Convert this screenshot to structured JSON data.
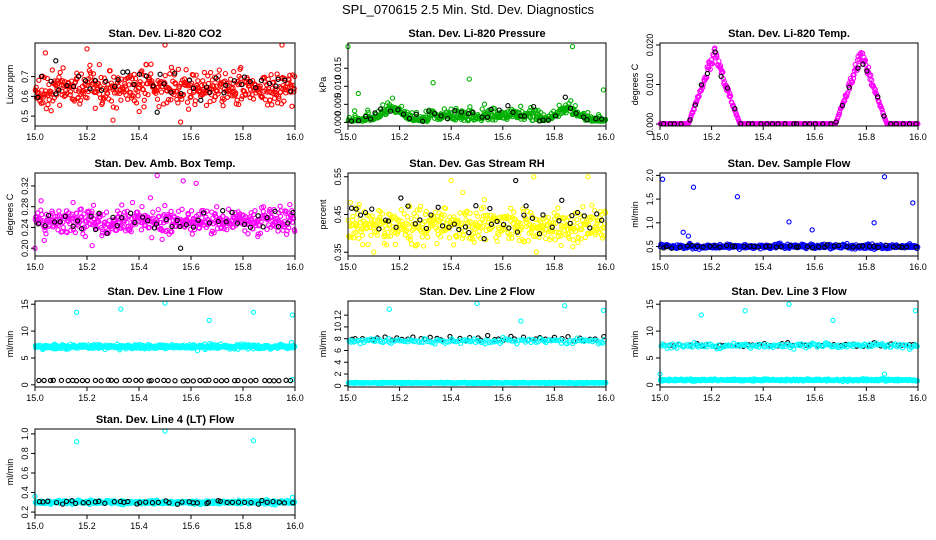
{
  "figure_title": "SPL_070615  2.5 Min. Std. Dev. Diagnostics",
  "chart_data": [
    {
      "type": "scatter",
      "title": "Stan. Dev. Li-820 CO2",
      "ylabel": "Licor ppm",
      "xlim": [
        15.0,
        16.0
      ],
      "ylim": [
        0.45,
        0.87
      ],
      "xticks": [
        "15.0",
        "15.2",
        "15.4",
        "15.6",
        "15.8",
        "16.0"
      ],
      "yticks": [
        "0.5",
        "0.6",
        "0.7"
      ],
      "ytick_values": [
        0.5,
        0.6,
        0.7
      ],
      "series": [
        {
          "name": "primary",
          "color": "#ff0000",
          "pattern": "noise",
          "center": 0.64,
          "spread": 0.06,
          "n": 500,
          "outliers": [
            [
              15.04,
              0.82
            ],
            [
              15.5,
              0.86
            ],
            [
              15.95,
              0.86
            ],
            [
              15.3,
              0.48
            ],
            [
              15.56,
              0.47
            ],
            [
              15.2,
              0.84
            ]
          ]
        },
        {
          "name": "secondary",
          "color": "#000000",
          "pattern": "noise",
          "center": 0.66,
          "spread": 0.05,
          "n": 45,
          "outliers": [
            [
              15.08,
              0.78
            ],
            [
              15.47,
              0.52
            ]
          ]
        }
      ]
    },
    {
      "type": "scatter",
      "title": "Stan. Dev. Li-820 Pressure",
      "ylabel": "kPa",
      "xlim": [
        15.0,
        16.0
      ],
      "ylim": [
        -0.001,
        0.022
      ],
      "xticks": [
        "15.0",
        "15.2",
        "15.4",
        "15.6",
        "15.8",
        "16.0"
      ],
      "yticks": [
        "0.000",
        "0.005",
        "0.010",
        "0.015"
      ],
      "ytick_values": [
        0,
        0.005,
        0.01,
        0.015
      ],
      "series": [
        {
          "name": "primary",
          "color": "#00b000",
          "pattern": "pressure",
          "n": 450,
          "outliers": [
            [
              15.0,
              0.021
            ],
            [
              15.87,
              0.021
            ],
            [
              15.47,
              0.012
            ],
            [
              15.33,
              0.011
            ],
            [
              15.99,
              0.009
            ],
            [
              15.04,
              0.008
            ]
          ]
        },
        {
          "name": "secondary",
          "color": "#000000",
          "pattern": "pressure",
          "n": 40,
          "outliers": []
        }
      ]
    },
    {
      "type": "scatter",
      "title": "Stan. Dev. Li-820 Temp.",
      "ylabel": "degrees C",
      "xlim": [
        15.0,
        16.0
      ],
      "ylim": [
        -0.0005,
        0.0205
      ],
      "xticks": [
        "15.0",
        "15.2",
        "15.4",
        "15.6",
        "15.8",
        "16.0"
      ],
      "yticks": [
        "0.000",
        "0.010",
        "0.020"
      ],
      "ytick_values": [
        0,
        0.01,
        0.02
      ],
      "series": [
        {
          "name": "primary",
          "color": "#ff00ff",
          "pattern": "peaks",
          "peaks": [
            15.21,
            15.78
          ],
          "peak_height": 0.019,
          "half_width": 0.1,
          "n": 450,
          "outliers": []
        },
        {
          "name": "secondary",
          "color": "#000000",
          "pattern": "peaks",
          "peaks": [
            15.21,
            15.78
          ],
          "peak_height": 0.019,
          "half_width": 0.1,
          "n": 40,
          "outliers": []
        }
      ]
    },
    {
      "type": "scatter",
      "title": "Stan. Dev. Amb. Box Temp.",
      "ylabel": "degrees C",
      "xlim": [
        15.0,
        16.0
      ],
      "ylim": [
        0.185,
        0.345
      ],
      "xticks": [
        "15.0",
        "15.2",
        "15.4",
        "15.6",
        "15.8",
        "16.0"
      ],
      "yticks": [
        "0.20",
        "0.24",
        "0.28",
        "0.32"
      ],
      "ytick_values": [
        0.2,
        0.24,
        0.28,
        0.32
      ],
      "series": [
        {
          "name": "primary",
          "color": "#ff00ff",
          "pattern": "noise",
          "center": 0.252,
          "spread": 0.018,
          "n": 480,
          "outliers": [
            [
              15.47,
              0.34
            ],
            [
              15.57,
              0.33
            ],
            [
              15.62,
              0.325
            ],
            [
              15.0,
              0.2
            ],
            [
              15.22,
              0.205
            ]
          ]
        },
        {
          "name": "secondary",
          "color": "#000000",
          "pattern": "noise",
          "center": 0.252,
          "spread": 0.014,
          "n": 45,
          "outliers": [
            [
              15.56,
              0.2
            ]
          ]
        }
      ]
    },
    {
      "type": "scatter",
      "title": "Stan. Dev. Gas Stream RH",
      "ylabel": "percent",
      "xlim": [
        15.0,
        16.0
      ],
      "ylim": [
        0.34,
        0.56
      ],
      "xticks": [
        "15.0",
        "15.2",
        "15.4",
        "15.6",
        "15.8",
        "16.0"
      ],
      "yticks": [
        "0.35",
        "0.45",
        "0.55"
      ],
      "ytick_values": [
        0.35,
        0.45,
        0.55
      ],
      "series": [
        {
          "name": "primary",
          "color": "#ffff00",
          "pattern": "noise",
          "center": 0.42,
          "spread": 0.03,
          "n": 480,
          "outliers": [
            [
              15.72,
              0.55
            ],
            [
              15.93,
              0.55
            ],
            [
              15.4,
              0.54
            ],
            [
              15.1,
              0.35
            ],
            [
              15.73,
              0.35
            ]
          ]
        },
        {
          "name": "secondary",
          "color": "#000000",
          "pattern": "noise",
          "center": 0.44,
          "spread": 0.03,
          "n": 45,
          "outliers": [
            [
              15.65,
              0.54
            ]
          ]
        }
      ]
    },
    {
      "type": "scatter",
      "title": "Stan. Dev. Sample Flow",
      "ylabel": "ml/min",
      "xlim": [
        15.0,
        16.0
      ],
      "ylim": [
        0.3,
        2.05
      ],
      "xticks": [
        "15.0",
        "15.2",
        "15.4",
        "15.6",
        "15.8",
        "16.0"
      ],
      "yticks": [
        "0.5",
        "1.0",
        "1.5",
        "2.0"
      ],
      "ytick_values": [
        0.5,
        1,
        1.5,
        2
      ],
      "series": [
        {
          "name": "primary",
          "color": "#0000ff",
          "pattern": "noise",
          "center": 0.5,
          "spread": 0.03,
          "n": 450,
          "outliers": [
            [
              15.01,
              1.92
            ],
            [
              15.87,
              1.97
            ],
            [
              15.13,
              1.75
            ],
            [
              15.3,
              1.55
            ],
            [
              15.98,
              1.42
            ],
            [
              15.83,
              1.0
            ],
            [
              15.5,
              1.02
            ],
            [
              15.09,
              0.8
            ],
            [
              15.11,
              0.72
            ],
            [
              15.59,
              0.85
            ]
          ]
        },
        {
          "name": "secondary",
          "color": "#000000",
          "pattern": "noise",
          "center": 0.5,
          "spread": 0.02,
          "n": 45,
          "outliers": []
        }
      ]
    },
    {
      "type": "scatter",
      "title": "Stan. Dev. Line 1 Flow",
      "ylabel": "ml/min",
      "xlim": [
        15.0,
        16.0
      ],
      "ylim": [
        -0.4,
        15.6
      ],
      "xticks": [
        "15.0",
        "15.2",
        "15.4",
        "15.6",
        "15.8",
        "16.0"
      ],
      "yticks": [
        "0",
        "5",
        "10",
        "15"
      ],
      "ytick_values": [
        0,
        5,
        10,
        15
      ],
      "series": [
        {
          "name": "primary",
          "color": "#00ffff",
          "pattern": "noise",
          "center": 7.1,
          "spread": 0.28,
          "n": 450,
          "outliers": [
            [
              15.16,
              13.5
            ],
            [
              15.33,
              14.1
            ],
            [
              15.5,
              15.2
            ],
            [
              15.67,
              12.0
            ],
            [
              15.84,
              13.5
            ],
            [
              15.99,
              13.0
            ],
            [
              15.99,
              1.0
            ]
          ]
        },
        {
          "name": "secondary",
          "color": "#000000",
          "pattern": "noise",
          "center": 0.8,
          "spread": 0.05,
          "n": 45,
          "outliers": []
        }
      ]
    },
    {
      "type": "scatter",
      "title": "Stan. Dev. Line 2 Flow",
      "ylabel": "ml/min",
      "xlim": [
        15.0,
        16.0
      ],
      "ylim": [
        -0.2,
        14.4
      ],
      "xticks": [
        "15.0",
        "15.2",
        "15.4",
        "15.6",
        "15.8",
        "16.0"
      ],
      "yticks": [
        "0",
        "2",
        "4",
        "6",
        "8",
        "10",
        "12"
      ],
      "ytick_values": [
        0,
        2,
        4,
        6,
        8,
        10,
        12
      ],
      "series": [
        {
          "name": "primary",
          "color": "#00ffff",
          "pattern": "noise",
          "center": 0.5,
          "spread": 0.05,
          "n": 450,
          "outliers": [
            [
              15.16,
              13.0
            ],
            [
              15.5,
              14.0
            ],
            [
              15.67,
              11.0
            ],
            [
              15.84,
              13.6
            ],
            [
              15.99,
              12.8
            ]
          ]
        },
        {
          "name": "secondary",
          "color": "#000000",
          "pattern": "noise",
          "center": 8.0,
          "spread": 0.3,
          "n": 45,
          "outliers": []
        },
        {
          "name": "primary-upper",
          "color": "#00ffff",
          "pattern": "noise",
          "center": 7.6,
          "spread": 0.3,
          "n": 150,
          "outliers": []
        }
      ]
    },
    {
      "type": "scatter",
      "title": "Stan. Dev. Line 3 Flow",
      "ylabel": "ml/min",
      "xlim": [
        15.0,
        16.0
      ],
      "ylim": [
        -0.4,
        15.6
      ],
      "xticks": [
        "15.0",
        "15.2",
        "15.4",
        "15.6",
        "15.8",
        "16.0"
      ],
      "yticks": [
        "0",
        "5",
        "10",
        "15"
      ],
      "ytick_values": [
        0,
        5,
        10,
        15
      ],
      "series": [
        {
          "name": "primary",
          "color": "#00ffff",
          "pattern": "noise",
          "center": 0.9,
          "spread": 0.12,
          "n": 380,
          "outliers": [
            [
              15.16,
              13.0
            ],
            [
              15.33,
              13.8
            ],
            [
              15.5,
              15.0
            ],
            [
              15.67,
              12.0
            ],
            [
              15.99,
              13.8
            ],
            [
              15.0,
              2.0
            ],
            [
              15.87,
              2.0
            ]
          ]
        },
        {
          "name": "secondary",
          "color": "#000000",
          "pattern": "noise",
          "center": 7.4,
          "spread": 0.25,
          "n": 45,
          "outliers": []
        },
        {
          "name": "primary-upper",
          "color": "#00ffff",
          "pattern": "noise",
          "center": 7.3,
          "spread": 0.3,
          "n": 170,
          "outliers": []
        }
      ]
    },
    {
      "type": "scatter",
      "title": "Stan. Dev. Line 4 (LT) Flow",
      "ylabel": "ml/min",
      "xlim": [
        15.0,
        16.0
      ],
      "ylim": [
        0.17,
        1.05
      ],
      "xticks": [
        "15.0",
        "15.2",
        "15.4",
        "15.6",
        "15.8",
        "16.0"
      ],
      "yticks": [
        "0.2",
        "0.4",
        "0.6",
        "0.8",
        "1.0"
      ],
      "ytick_values": [
        0.2,
        0.4,
        0.6,
        0.8,
        1.0
      ],
      "series": [
        {
          "name": "primary",
          "color": "#00ffff",
          "pattern": "noise",
          "center": 0.3,
          "spread": 0.012,
          "n": 450,
          "outliers": [
            [
              15.16,
              0.92
            ],
            [
              15.5,
              1.03
            ],
            [
              15.84,
              0.93
            ],
            [
              15.0,
              0.36
            ],
            [
              15.99,
              0.35
            ]
          ]
        },
        {
          "name": "secondary",
          "color": "#000000",
          "pattern": "noise",
          "center": 0.3,
          "spread": 0.012,
          "n": 45,
          "outliers": []
        }
      ]
    }
  ]
}
